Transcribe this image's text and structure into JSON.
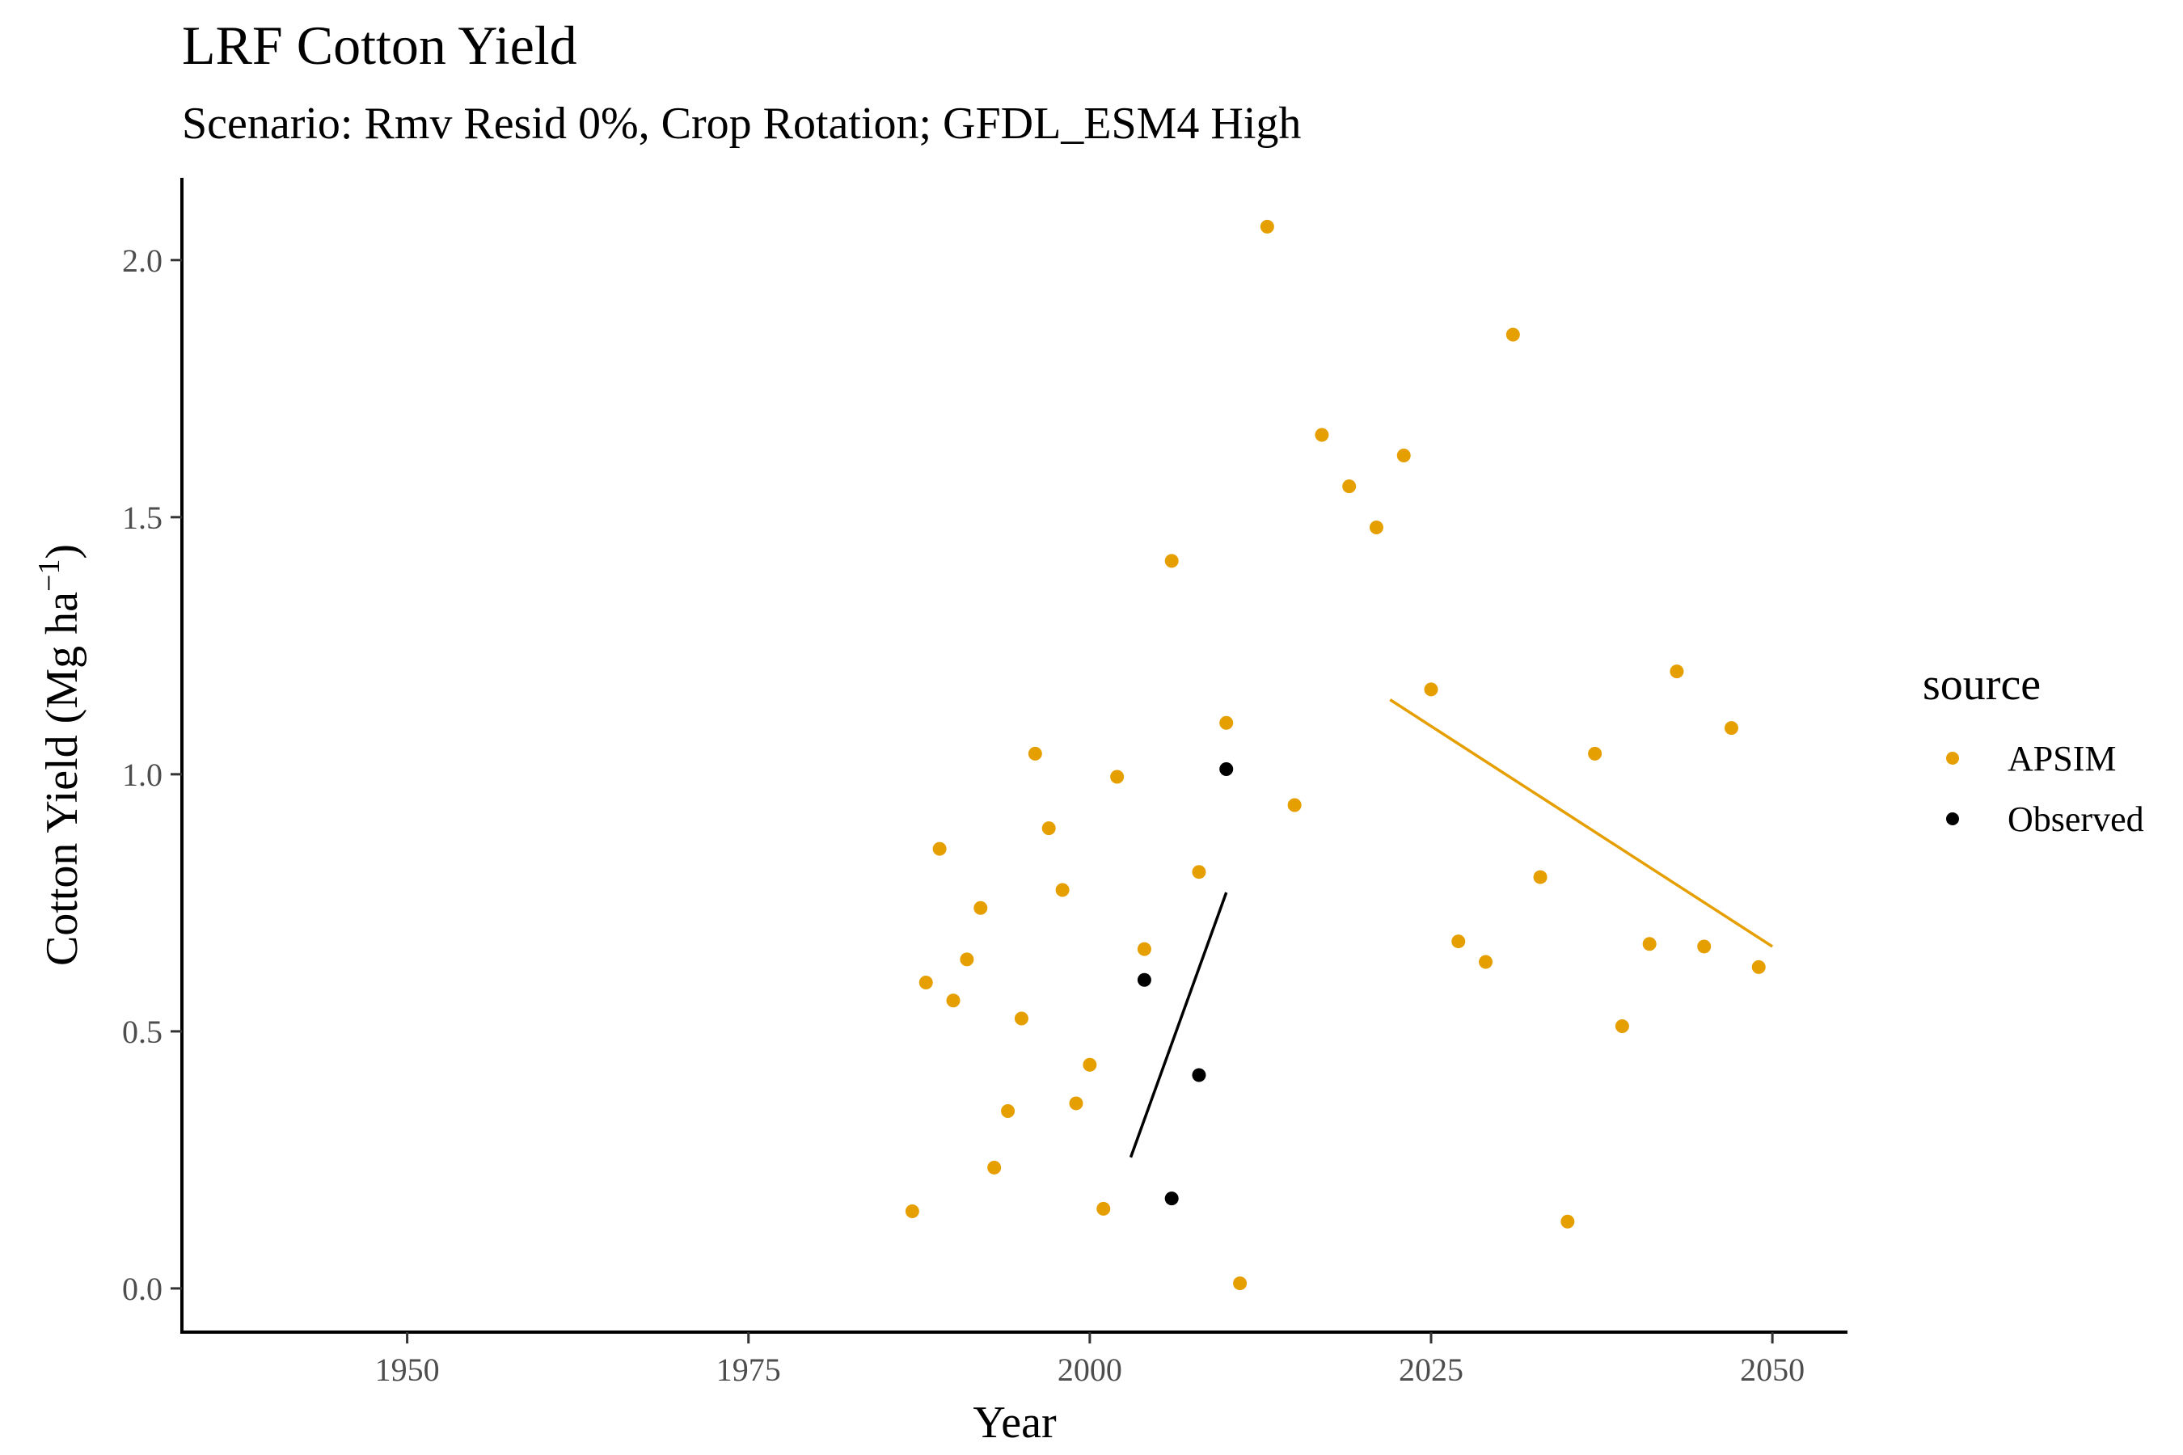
{
  "chart_data": {
    "type": "scatter",
    "title": "LRF Cotton Yield",
    "subtitle": "Scenario: Rmv Resid 0%, Crop Rotation; GFDL_ESM4 High",
    "xlabel": "Year",
    "ylabel": "Cotton Yield (Mg ha",
    "ylabel_superscript": "−1",
    "ylabel_suffix": ")",
    "xlim": [
      1933.5,
      2055.5
    ],
    "ylim": [
      -0.085,
      2.16
    ],
    "x_ticks": [
      1950,
      1975,
      2000,
      2025,
      2050
    ],
    "y_ticks": [
      0.0,
      0.5,
      1.0,
      1.5,
      2.0
    ],
    "y_tick_labels": [
      "0.0",
      "0.5",
      "1.0",
      "1.5",
      "2.0"
    ],
    "grid": false,
    "legend_title": "source",
    "legend_position": "right",
    "series": [
      {
        "name": "APSIM",
        "color": "#E69F00",
        "x": [
          1987,
          1988,
          1989,
          1990,
          1991,
          1992,
          1993,
          1994,
          1995,
          1996,
          1997,
          1998,
          1999,
          2000,
          2001,
          2002,
          2004,
          2006,
          2008,
          2010,
          2011,
          2013,
          2015,
          2017,
          2019,
          2021,
          2023,
          2025,
          2027,
          2029,
          2031,
          2033,
          2035,
          2037,
          2039,
          2041,
          2043,
          2045,
          2047,
          2049
        ],
        "y": [
          0.15,
          0.595,
          0.855,
          0.56,
          0.64,
          0.74,
          0.235,
          0.345,
          0.525,
          1.04,
          0.895,
          0.775,
          0.36,
          0.435,
          0.155,
          0.995,
          0.66,
          1.415,
          0.81,
          1.1,
          0.01,
          2.065,
          0.94,
          1.66,
          1.56,
          1.48,
          1.62,
          1.165,
          0.675,
          0.635,
          1.855,
          0.8,
          0.13,
          1.04,
          0.51,
          0.67,
          1.2,
          0.665,
          1.09,
          0.625
        ]
      },
      {
        "name": "Observed",
        "color": "#000000",
        "x": [
          2004,
          2006,
          2008,
          2010
        ],
        "y": [
          0.6,
          0.175,
          0.415,
          1.01
        ]
      }
    ],
    "trend_lines": [
      {
        "series": "APSIM",
        "color": "#E69F00",
        "x": [
          2022,
          2050
        ],
        "y": [
          1.145,
          0.665
        ]
      },
      {
        "series": "Observed",
        "color": "#000000",
        "x": [
          2003,
          2010
        ],
        "y": [
          0.255,
          0.77
        ]
      }
    ]
  }
}
